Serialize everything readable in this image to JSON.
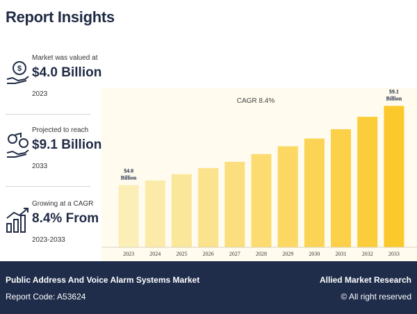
{
  "title": "Report Insights",
  "stats": [
    {
      "label": "Market was valued at",
      "value": "$4.0 Billion",
      "sub": "2023",
      "icon": "money-hand-icon"
    },
    {
      "label": "Projected to reach",
      "value": "$9.1 Billion",
      "sub": "2033",
      "icon": "growth-coins-icon"
    },
    {
      "label": "Growing at a CAGR",
      "value": "8.4% From",
      "sub": "2023-2033",
      "icon": "bar-growth-icon"
    }
  ],
  "chart_data": {
    "type": "bar",
    "title": "CAGR 8.4%",
    "categories": [
      "2023",
      "2024",
      "2025",
      "2026",
      "2027",
      "2028",
      "2029",
      "2030",
      "2031",
      "2032",
      "2033"
    ],
    "values": [
      4.0,
      4.3,
      4.7,
      5.1,
      5.5,
      6.0,
      6.5,
      7.0,
      7.6,
      8.4,
      9.1
    ],
    "annotations": [
      {
        "index": 0,
        "lines": [
          "$4.0",
          "Billion"
        ]
      },
      {
        "index": 10,
        "lines": [
          "$9.1",
          "Billion"
        ]
      }
    ],
    "ylim": [
      0,
      10
    ],
    "grid": false,
    "colors": [
      "#fbeeb6",
      "#fcc92c"
    ]
  },
  "footer": {
    "report_name": "Public Address And Voice Alarm Systems Market",
    "report_code": "Report Code: A53624",
    "brand": "Allied Market Research",
    "rights": "© All right reserved"
  }
}
